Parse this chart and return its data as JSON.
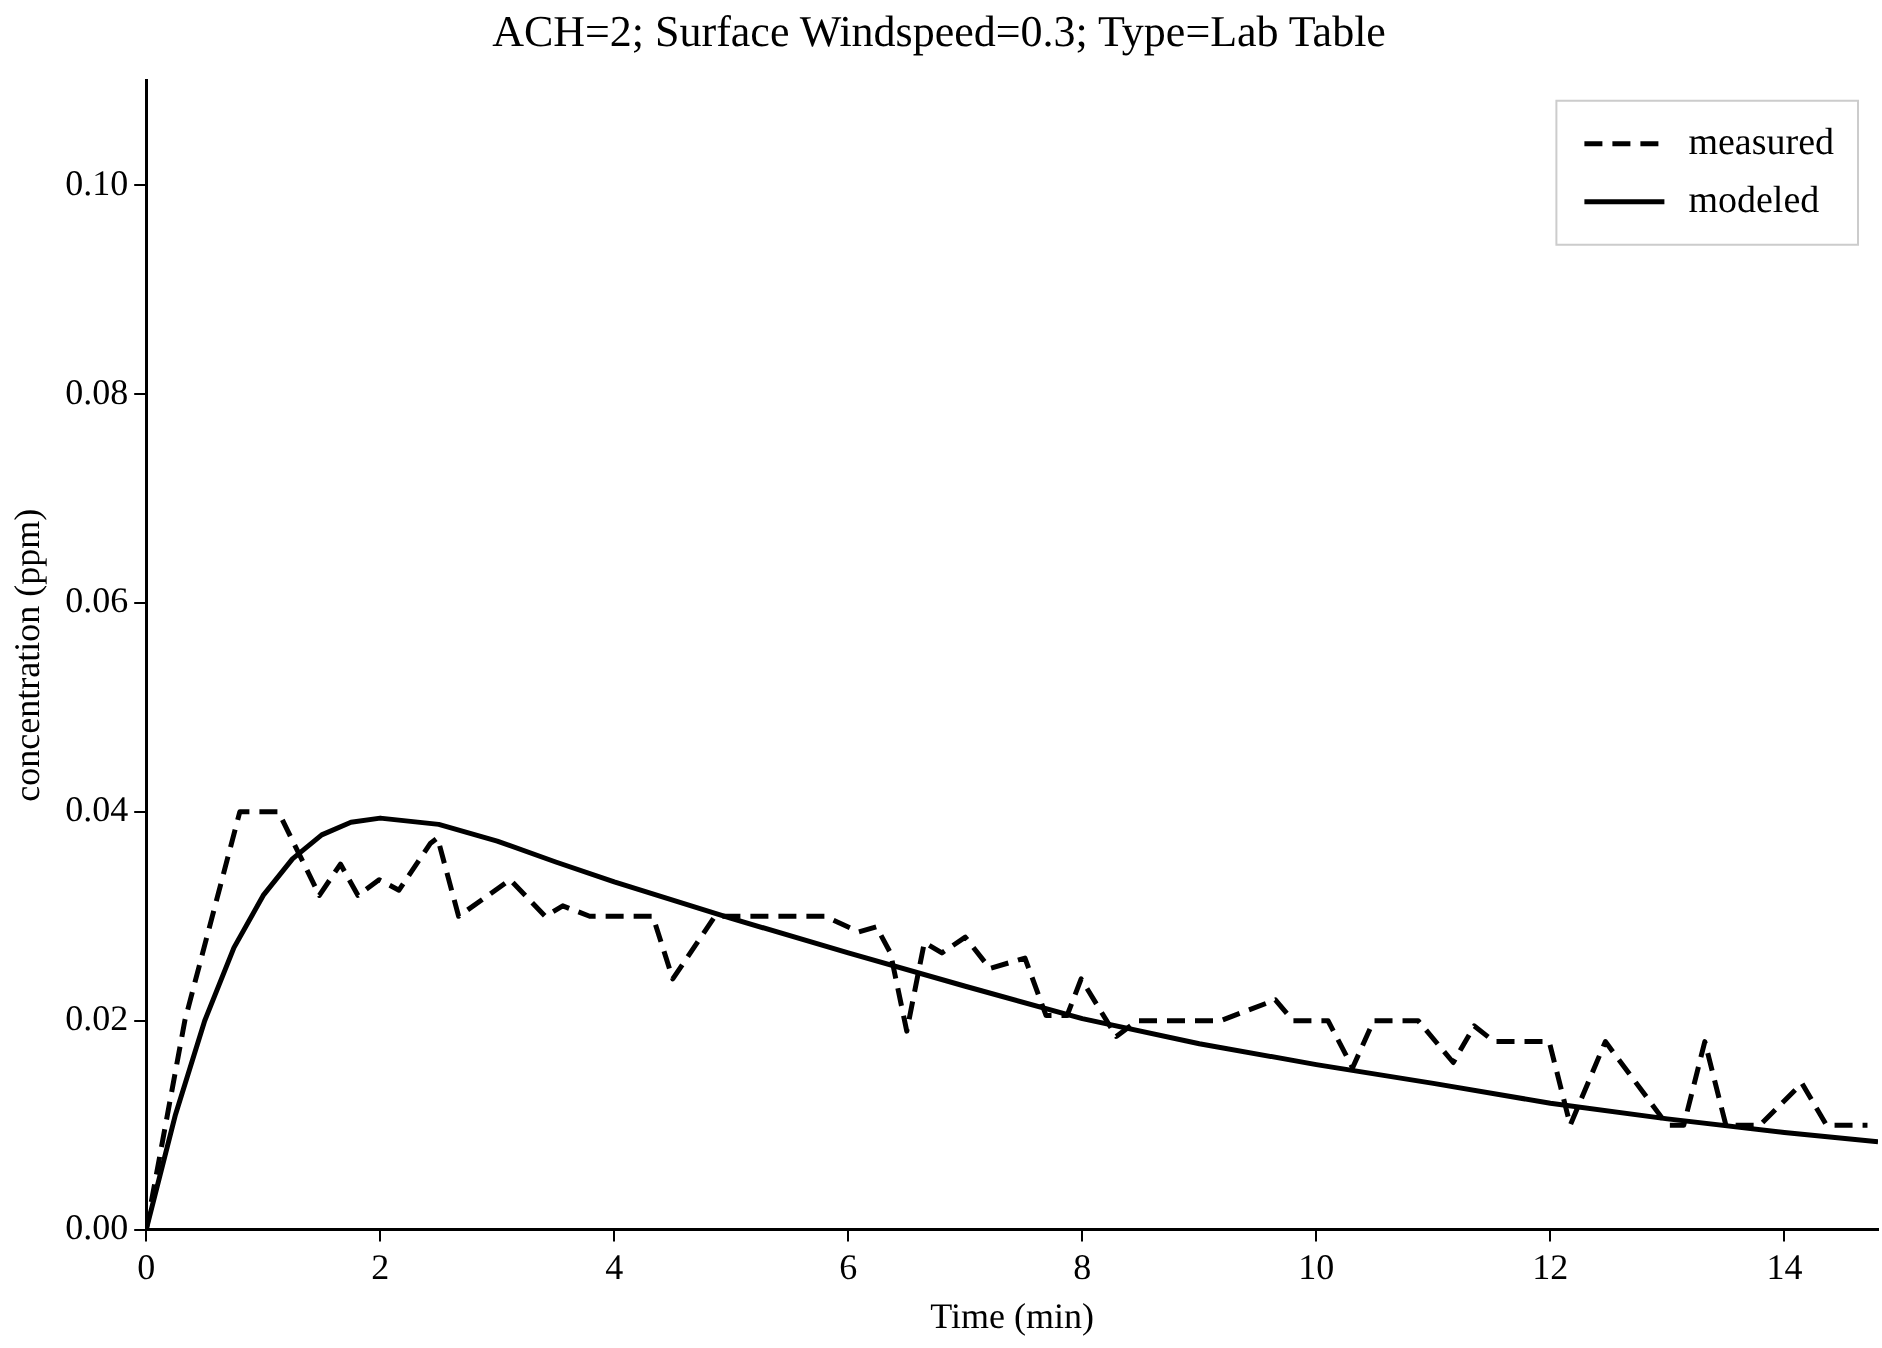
{
  "chart_data": {
    "type": "line",
    "title": "ACH=2; Surface Windspeed=0.3; Type=Lab Table",
    "xlabel": "Time (min)",
    "ylabel": "concentration (ppm)",
    "xlim": [
      0,
      14.8
    ],
    "xticks": [
      0,
      2,
      4,
      6,
      8,
      10,
      12,
      14
    ],
    "ylim": [
      0,
      0.11
    ],
    "yticks": [
      {
        "value": 0,
        "label": "0.00"
      },
      0.02,
      0.04,
      0.06,
      0.08,
      {
        "value": 0.1,
        "label": "0.10"
      }
    ],
    "grid": false,
    "legend": "top right",
    "marker": "none",
    "series": [
      {
        "name": "measured",
        "color": "#000000",
        "line_style": "dashed",
        "x": [
          0,
          0.33,
          0.8,
          1.13,
          1.48,
          1.66,
          1.81,
          1.99,
          2.16,
          2.43,
          2.49,
          2.67,
          3.11,
          3.41,
          3.56,
          3.79,
          4.33,
          4.5,
          4.86,
          5.8,
          6.09,
          6.24,
          6.36,
          6.5,
          6.65,
          6.8,
          7.0,
          7.21,
          7.51,
          7.69,
          7.87,
          7.99,
          8.29,
          8.47,
          9.18,
          9.65,
          9.8,
          10.1,
          10.31,
          10.49,
          10.87,
          11.17,
          11.35,
          11.52,
          11.99,
          12.17,
          12.47,
          12.67,
          13.0,
          13.14,
          13.32,
          13.5,
          13.79,
          14.15,
          14.36,
          14.71
        ],
        "values": [
          0,
          0.02,
          0.04,
          0.04,
          0.032,
          0.035,
          0.032,
          0.0335,
          0.0325,
          0.037,
          0.0375,
          0.03,
          0.0335,
          0.03,
          0.031,
          0.03,
          0.03,
          0.024,
          0.03,
          0.03,
          0.0285,
          0.029,
          0.0265,
          0.019,
          0.0275,
          0.0265,
          0.028,
          0.025,
          0.026,
          0.0205,
          0.0205,
          0.024,
          0.0185,
          0.02,
          0.02,
          0.022,
          0.02,
          0.02,
          0.0155,
          0.02,
          0.02,
          0.016,
          0.0195,
          0.018,
          0.018,
          0.01,
          0.018,
          0.015,
          0.01,
          0.01,
          0.018,
          0.01,
          0.01,
          0.014,
          0.01,
          0.01
        ]
      },
      {
        "name": "modeled",
        "color": "#000000",
        "line_style": "solid",
        "x": [
          0,
          0.25,
          0.5,
          0.75,
          1,
          1.25,
          1.5,
          1.75,
          2,
          2.5,
          3,
          3.5,
          4,
          5,
          6,
          7,
          8,
          9,
          10,
          11,
          12,
          13,
          14,
          14.8
        ],
        "values": [
          0,
          0.011,
          0.02,
          0.027,
          0.032,
          0.0355,
          0.0378,
          0.039,
          0.0394,
          0.0388,
          0.0372,
          0.0352,
          0.0333,
          0.0298,
          0.0265,
          0.0233,
          0.0202,
          0.0178,
          0.0158,
          0.014,
          0.0121,
          0.0106,
          0.0093,
          0.0084
        ]
      }
    ]
  }
}
